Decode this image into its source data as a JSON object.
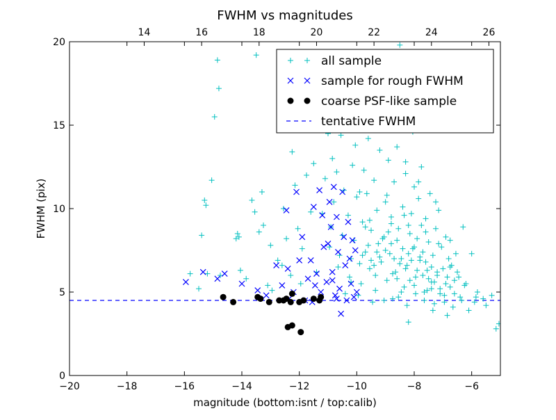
{
  "chart_data": {
    "type": "scatter",
    "title": "FWHM vs magnitudes",
    "xlabel": "magnitude (bottom:isnt / top:calib)",
    "ylabel": "FWHM (pix)",
    "xlim": [
      -20,
      -5
    ],
    "ylim": [
      0,
      20
    ],
    "x_ticks": [
      -20,
      -18,
      -16,
      -14,
      -12,
      -10,
      -8,
      -6
    ],
    "x_tick_labels": [
      "−20",
      "−18",
      "−16",
      "−14",
      "−12",
      "−10",
      "−8",
      "−6"
    ],
    "y_ticks": [
      0,
      5,
      10,
      15,
      20
    ],
    "y_tick_labels": [
      "0",
      "5",
      "10",
      "15",
      "20"
    ],
    "top_axis": {
      "offset": 31.4,
      "ticks": [
        14,
        16,
        18,
        20,
        22,
        24,
        26
      ],
      "tick_labels": [
        "14",
        "16",
        "18",
        "20",
        "22",
        "24",
        "26"
      ]
    },
    "grid": false,
    "legend_position": "top-right",
    "tentative_fwhm": 4.5,
    "series": [
      {
        "name": "all sample",
        "marker": "plus",
        "color": "#00bfbf",
        "points": [
          [
            -15.8,
            6.1
          ],
          [
            -15.5,
            5.2
          ],
          [
            -15.4,
            8.4
          ],
          [
            -15.3,
            10.5
          ],
          [
            -15.25,
            10.2
          ],
          [
            -15.2,
            6.1
          ],
          [
            -15.05,
            11.7
          ],
          [
            -14.95,
            15.5
          ],
          [
            -14.85,
            18.9
          ],
          [
            -14.8,
            17.2
          ],
          [
            -14.75,
            6.0
          ],
          [
            -14.2,
            8.2
          ],
          [
            -14.15,
            8.5
          ],
          [
            -14.1,
            8.3
          ],
          [
            -14.05,
            6.3
          ],
          [
            -13.85,
            5.8
          ],
          [
            -13.65,
            10.5
          ],
          [
            -13.55,
            9.8
          ],
          [
            -13.5,
            19.2
          ],
          [
            -13.4,
            8.6
          ],
          [
            -13.3,
            11.0
          ],
          [
            -13.25,
            9.0
          ],
          [
            -13.1,
            5.4
          ],
          [
            -12.95,
            5.1
          ],
          [
            -12.75,
            6.9
          ],
          [
            -12.55,
            10.0
          ],
          [
            -12.45,
            8.2
          ],
          [
            -12.3,
            6.0
          ],
          [
            -12.25,
            13.4
          ],
          [
            -12.15,
            11.4
          ],
          [
            -12.05,
            8.8
          ],
          [
            -11.95,
            5.5
          ],
          [
            -11.75,
            12.0
          ],
          [
            -11.5,
            12.7
          ],
          [
            -11.4,
            6.2
          ],
          [
            -11.2,
            9.7
          ],
          [
            -11.1,
            11.8
          ],
          [
            -11.0,
            14.5
          ],
          [
            -10.95,
            7.7
          ],
          [
            -10.85,
            13.0
          ],
          [
            -10.8,
            10.4
          ],
          [
            -10.75,
            15.5
          ],
          [
            -10.7,
            12.2
          ],
          [
            -10.65,
            6.5
          ],
          [
            -10.55,
            14.4
          ],
          [
            -10.5,
            8.4
          ],
          [
            -10.45,
            11.1
          ],
          [
            -10.35,
            16.6
          ],
          [
            -10.3,
            9.6
          ],
          [
            -10.25,
            5.9
          ],
          [
            -10.2,
            7.0
          ],
          [
            -10.15,
            12.6
          ],
          [
            -10.1,
            8.1
          ],
          [
            -10.05,
            13.8
          ],
          [
            -10.0,
            10.7
          ],
          [
            -9.95,
            4.8
          ],
          [
            -9.9,
            11.0
          ],
          [
            -9.85,
            5.5
          ],
          [
            -9.8,
            9.2
          ],
          [
            -9.75,
            12.3
          ],
          [
            -9.7,
            7.4
          ],
          [
            -9.65,
            10.9
          ],
          [
            -9.6,
            14.2
          ],
          [
            -9.55,
            6.4
          ],
          [
            -9.5,
            8.7
          ],
          [
            -9.45,
            4.4
          ],
          [
            -9.4,
            11.7
          ],
          [
            -9.35,
            5.1
          ],
          [
            -9.3,
            9.9
          ],
          [
            -9.25,
            7.9
          ],
          [
            -9.2,
            13.5
          ],
          [
            -9.15,
            6.8
          ],
          [
            -9.1,
            16.0
          ],
          [
            -9.05,
            8.3
          ],
          [
            -9.0,
            10.4
          ],
          [
            -8.95,
            5.7
          ],
          [
            -8.9,
            12.9
          ],
          [
            -8.85,
            7.3
          ],
          [
            -8.8,
            9.1
          ],
          [
            -8.75,
            4.6
          ],
          [
            -8.7,
            11.6
          ],
          [
            -8.65,
            6.2
          ],
          [
            -8.6,
            13.7
          ],
          [
            -8.55,
            8.8
          ],
          [
            -8.5,
            19.8
          ],
          [
            -8.45,
            7.0
          ],
          [
            -8.4,
            10.1
          ],
          [
            -8.35,
            5.3
          ],
          [
            -8.3,
            12.1
          ],
          [
            -8.25,
            6.6
          ],
          [
            -8.2,
            3.2
          ],
          [
            -8.15,
            8.5
          ],
          [
            -8.1,
            9.7
          ],
          [
            -8.05,
            7.6
          ],
          [
            -8.0,
            11.3
          ],
          [
            -7.95,
            5.9
          ],
          [
            -7.9,
            8.2
          ],
          [
            -7.85,
            10.6
          ],
          [
            -7.8,
            6.9
          ],
          [
            -7.75,
            12.5
          ],
          [
            -7.7,
            7.4
          ],
          [
            -7.65,
            5.0
          ],
          [
            -7.6,
            9.4
          ],
          [
            -7.55,
            6.3
          ],
          [
            -7.5,
            8.0
          ],
          [
            -7.45,
            10.9
          ],
          [
            -7.4,
            5.6
          ],
          [
            -7.35,
            7.2
          ],
          [
            -7.3,
            4.3
          ],
          [
            -7.25,
            8.8
          ],
          [
            -7.2,
            6.0
          ],
          [
            -7.15,
            9.9
          ],
          [
            -7.1,
            5.2
          ],
          [
            -7.05,
            7.7
          ],
          [
            -7.0,
            6.4
          ],
          [
            -6.95,
            4.8
          ],
          [
            -6.9,
            8.3
          ],
          [
            -6.85,
            5.9
          ],
          [
            -6.8,
            7.0
          ],
          [
            -6.75,
            5.3
          ],
          [
            -6.7,
            6.6
          ],
          [
            -6.65,
            4.1
          ],
          [
            -6.6,
            5.7
          ],
          [
            -6.5,
            6.2
          ],
          [
            -6.4,
            4.7
          ],
          [
            -6.3,
            8.9
          ],
          [
            -6.2,
            5.5
          ],
          [
            -6.1,
            3.9
          ],
          [
            -6.0,
            7.3
          ],
          [
            -5.9,
            4.4
          ],
          [
            -5.8,
            5.0
          ],
          [
            -5.6,
            4.6
          ],
          [
            -5.5,
            4.2
          ],
          [
            -5.3,
            4.8
          ],
          [
            -5.15,
            2.8
          ],
          [
            -5.05,
            3.1
          ],
          [
            -9.6,
            7.8
          ],
          [
            -9.4,
            6.6
          ],
          [
            -9.2,
            7.1
          ],
          [
            -9.0,
            7.5
          ],
          [
            -8.8,
            7.9
          ],
          [
            -8.6,
            8.1
          ],
          [
            -8.4,
            7.6
          ],
          [
            -8.2,
            7.3
          ],
          [
            -8.0,
            7.7
          ],
          [
            -7.8,
            7.1
          ],
          [
            -7.6,
            6.8
          ],
          [
            -7.4,
            6.5
          ],
          [
            -7.2,
            6.2
          ],
          [
            -9.5,
            6.9
          ],
          [
            -9.3,
            7.4
          ],
          [
            -9.1,
            8.2
          ],
          [
            -8.9,
            8.6
          ],
          [
            -8.7,
            7.0
          ],
          [
            -8.5,
            6.7
          ],
          [
            -8.3,
            6.4
          ],
          [
            -8.1,
            6.9
          ],
          [
            -7.9,
            6.3
          ],
          [
            -7.7,
            6.0
          ],
          [
            -7.5,
            5.8
          ],
          [
            -7.3,
            5.6
          ],
          [
            -9.7,
            8.9
          ],
          [
            -8.8,
            9.5
          ],
          [
            -8.2,
            9.0
          ],
          [
            -7.6,
            8.6
          ],
          [
            -8.6,
            5.8
          ],
          [
            -8.0,
            5.4
          ],
          [
            -7.4,
            5.2
          ],
          [
            -6.9,
            5.5
          ],
          [
            -9.8,
            7.2
          ],
          [
            -8.45,
            5.0
          ],
          [
            -7.95,
            4.9
          ],
          [
            -7.1,
            4.9
          ],
          [
            -6.6,
            4.9
          ],
          [
            -9.35,
            6.0
          ],
          [
            -8.75,
            6.1
          ],
          [
            -8.15,
            5.7
          ],
          [
            -7.55,
            5.1
          ],
          [
            -10.4,
            4.9
          ],
          [
            -10.2,
            5.6
          ],
          [
            -9.9,
            6.7
          ],
          [
            -9.55,
            9.3
          ],
          [
            -8.95,
            10.8
          ],
          [
            -8.35,
            9.6
          ],
          [
            -7.75,
            9.0
          ],
          [
            -7.15,
            7.9
          ],
          [
            -6.75,
            6.5
          ],
          [
            -6.45,
            5.9
          ],
          [
            -6.25,
            5.4
          ],
          [
            -8.55,
            4.7
          ],
          [
            -7.65,
            4.5
          ],
          [
            -6.95,
            4.4
          ],
          [
            -6.35,
            4.5
          ],
          [
            -5.85,
            4.7
          ],
          [
            -9.05,
            4.5
          ],
          [
            -8.25,
            4.2
          ],
          [
            -7.35,
            3.9
          ],
          [
            -6.85,
            3.6
          ],
          [
            -10.6,
            7.2
          ],
          [
            -10.9,
            8.9
          ],
          [
            -11.6,
            9.8
          ],
          [
            -11.9,
            7.6
          ],
          [
            -12.6,
            6.6
          ],
          [
            -13.0,
            7.8
          ],
          [
            -8.05,
            14.6
          ],
          [
            -8.65,
            15.2
          ],
          [
            -9.15,
            16.8
          ],
          [
            -9.75,
            17.4
          ],
          [
            -8.3,
            12.8
          ],
          [
            -7.85,
            11.6
          ],
          [
            -7.25,
            10.4
          ],
          [
            -6.75,
            8.1
          ],
          [
            -6.55,
            7.3
          ]
        ]
      },
      {
        "name": "sample for rough FWHM",
        "marker": "x",
        "color": "#0000ff",
        "points": [
          [
            -15.95,
            5.6
          ],
          [
            -15.35,
            6.2
          ],
          [
            -14.85,
            5.8
          ],
          [
            -14.6,
            6.1
          ],
          [
            -14.0,
            5.5
          ],
          [
            -13.45,
            5.1
          ],
          [
            -13.15,
            4.8
          ],
          [
            -12.8,
            6.6
          ],
          [
            -12.6,
            5.4
          ],
          [
            -12.45,
            9.9
          ],
          [
            -12.35,
            4.6
          ],
          [
            -12.2,
            5.0
          ],
          [
            -12.1,
            11.0
          ],
          [
            -12.0,
            6.9
          ],
          [
            -11.9,
            8.3
          ],
          [
            -11.8,
            4.5
          ],
          [
            -11.7,
            5.8
          ],
          [
            -11.6,
            6.9
          ],
          [
            -11.5,
            10.1
          ],
          [
            -11.45,
            5.4
          ],
          [
            -11.3,
            11.1
          ],
          [
            -11.2,
            9.6
          ],
          [
            -11.15,
            7.7
          ],
          [
            -11.05,
            5.6
          ],
          [
            -10.95,
            10.4
          ],
          [
            -10.9,
            8.9
          ],
          [
            -10.85,
            6.2
          ],
          [
            -10.8,
            11.3
          ],
          [
            -10.75,
            4.8
          ],
          [
            -10.7,
            9.5
          ],
          [
            -10.65,
            7.4
          ],
          [
            -10.6,
            5.2
          ],
          [
            -10.55,
            3.7
          ],
          [
            -10.5,
            11.0
          ],
          [
            -10.45,
            8.3
          ],
          [
            -10.4,
            6.6
          ],
          [
            -10.35,
            4.5
          ],
          [
            -10.3,
            9.2
          ],
          [
            -10.25,
            7.0
          ],
          [
            -10.2,
            5.5
          ],
          [
            -10.15,
            8.1
          ],
          [
            -10.1,
            4.7
          ],
          [
            -10.05,
            7.5
          ],
          [
            -10.0,
            5.0
          ],
          [
            -11.4,
            6.1
          ],
          [
            -11.0,
            7.9
          ],
          [
            -10.85,
            5.7
          ],
          [
            -12.4,
            6.4
          ],
          [
            -11.25,
            5.0
          ],
          [
            -10.7,
            4.6
          ],
          [
            -11.55,
            4.4
          ]
        ]
      },
      {
        "name": "coarse PSF-like sample",
        "marker": "dot",
        "color": "#000000",
        "points": [
          [
            -14.65,
            4.7
          ],
          [
            -14.3,
            4.4
          ],
          [
            -13.45,
            4.7
          ],
          [
            -13.35,
            4.6
          ],
          [
            -13.05,
            4.4
          ],
          [
            -12.7,
            4.5
          ],
          [
            -12.55,
            4.5
          ],
          [
            -12.45,
            4.6
          ],
          [
            -12.3,
            4.4
          ],
          [
            -12.25,
            4.9
          ],
          [
            -12.0,
            4.4
          ],
          [
            -11.85,
            4.5
          ],
          [
            -11.5,
            4.6
          ],
          [
            -11.3,
            4.5
          ],
          [
            -11.25,
            4.7
          ],
          [
            -12.4,
            2.9
          ],
          [
            -12.25,
            3.0
          ],
          [
            -11.95,
            2.6
          ]
        ]
      }
    ],
    "legend": [
      "all sample",
      "sample for rough FWHM",
      "coarse PSF-like sample",
      "tentative FWHM"
    ]
  }
}
